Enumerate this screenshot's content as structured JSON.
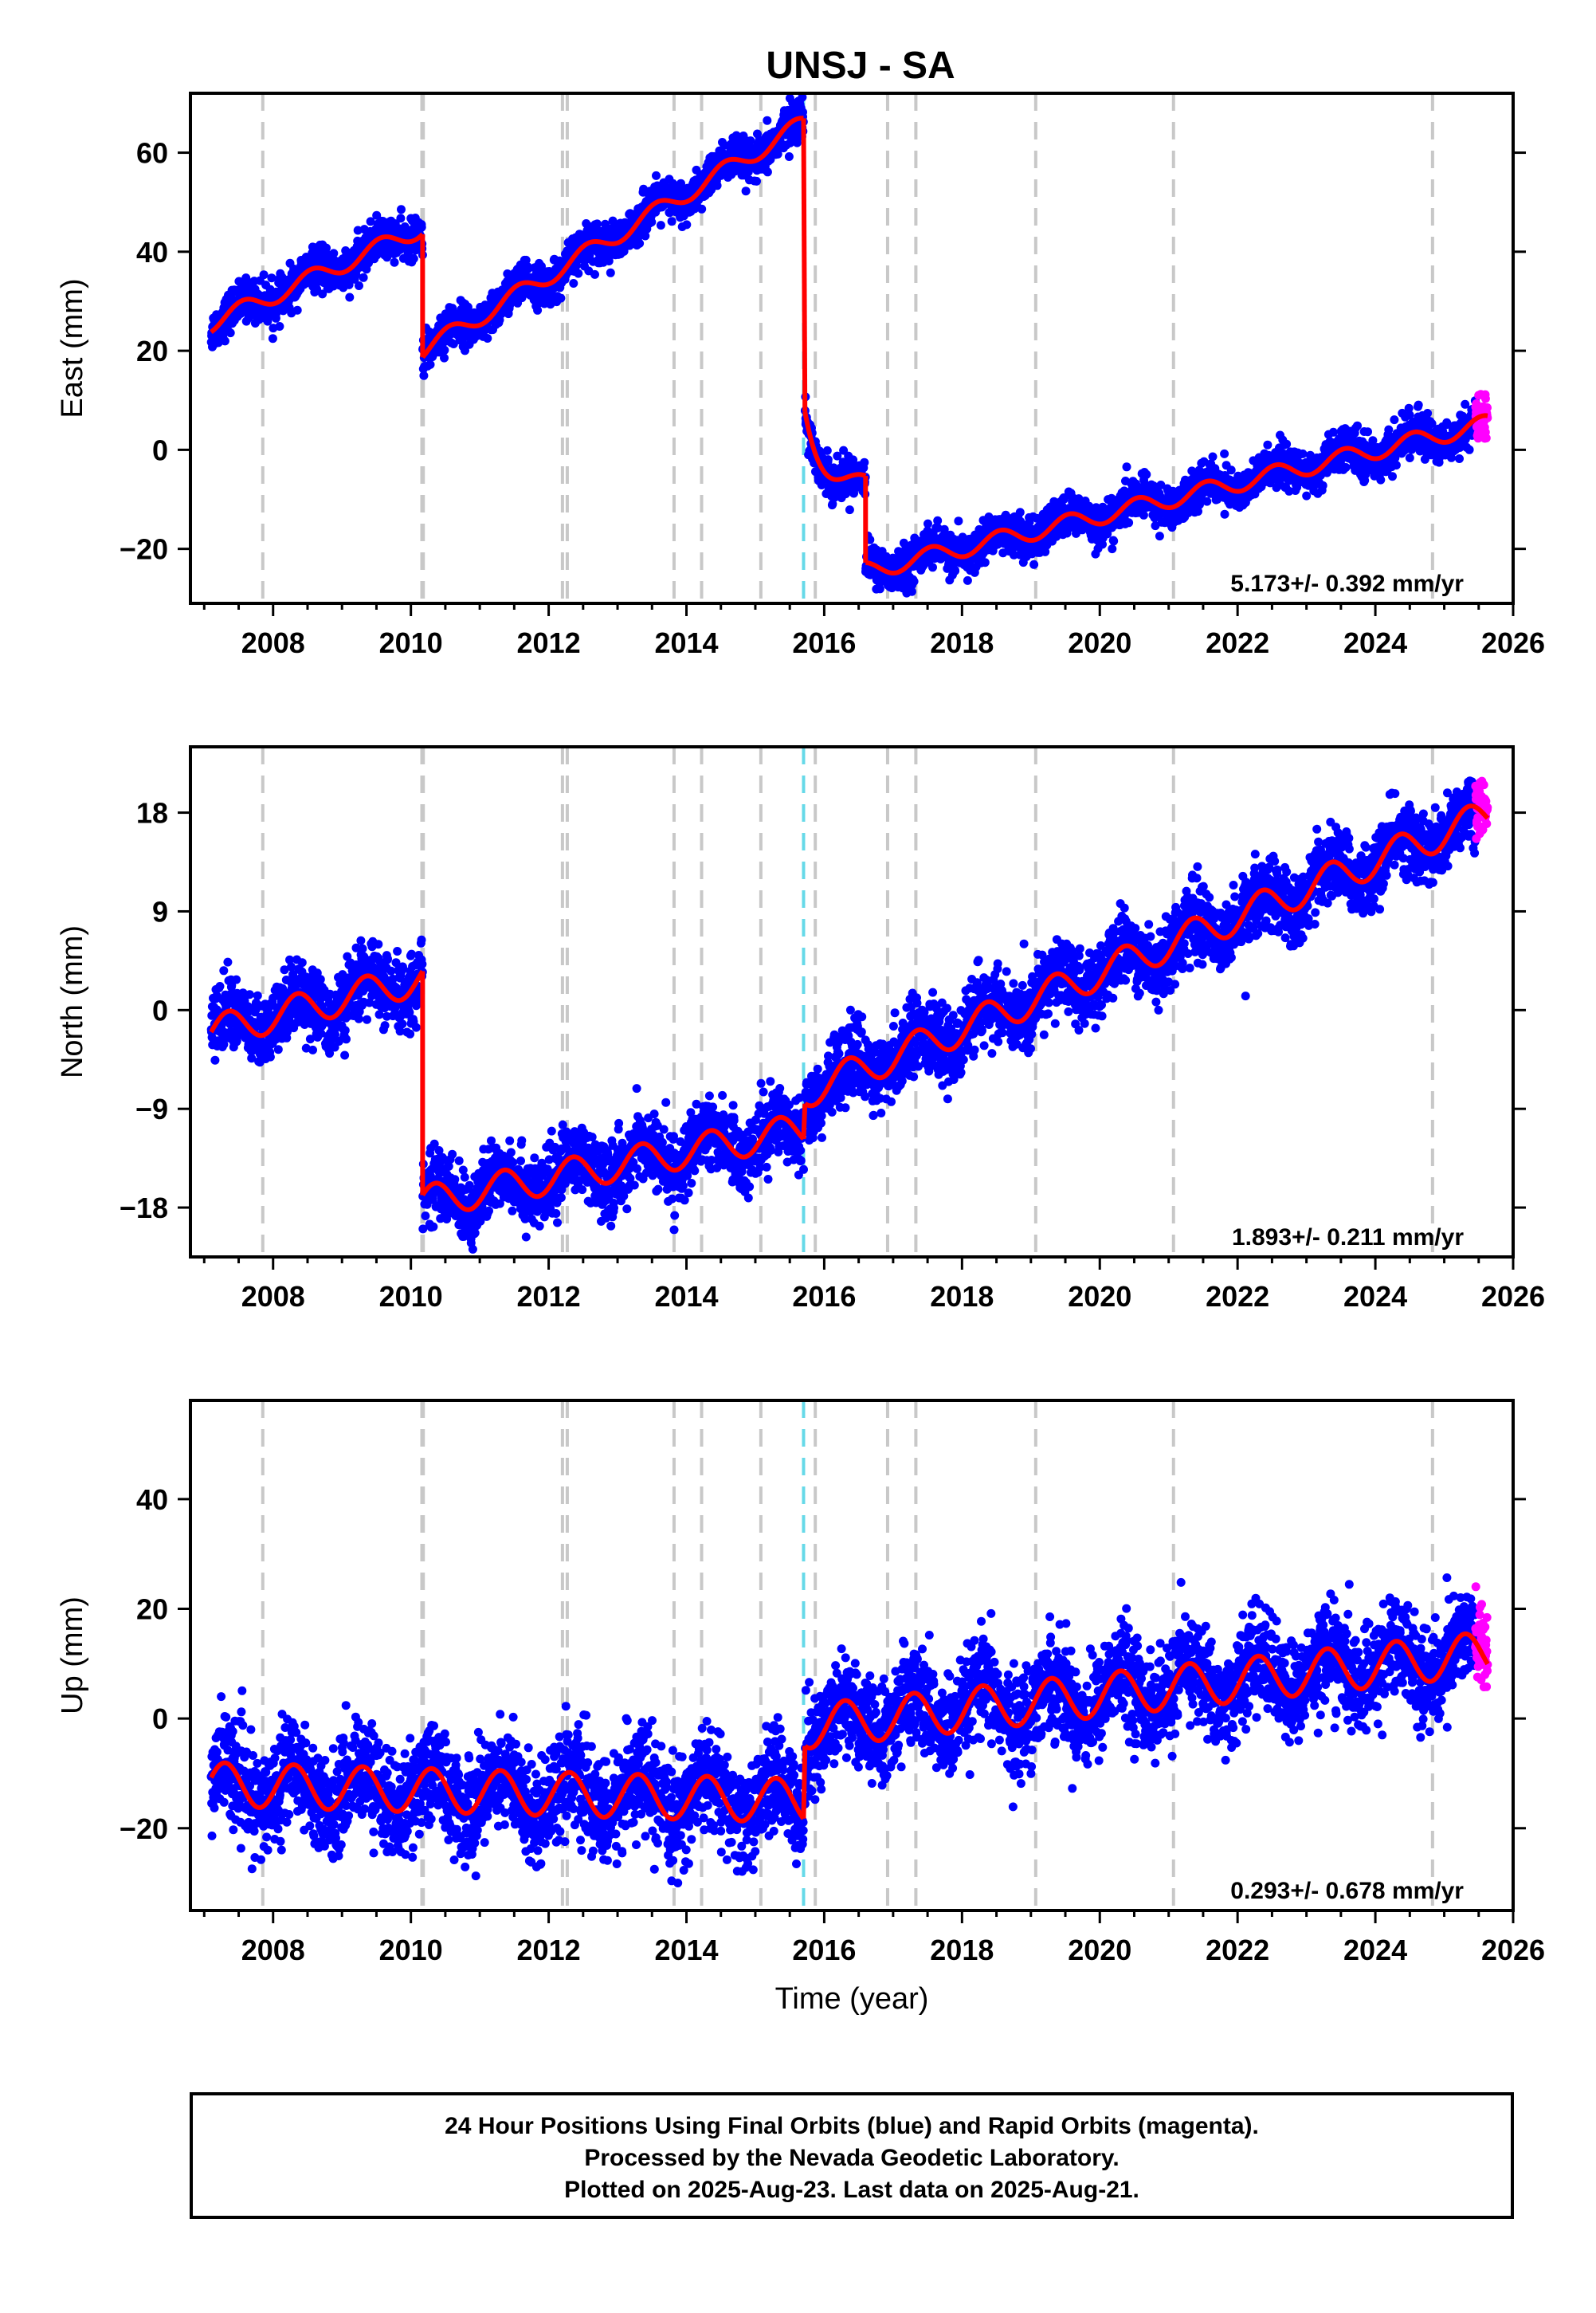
{
  "colors": {
    "final_orbits": "#0000ff",
    "rapid_orbits": "#ff00ff",
    "model": "#ff0000",
    "event_line": "#c8c8c8",
    "special_event_line": "#66d9e8",
    "frame": "#000000"
  },
  "chart_data": [
    {
      "type": "scatter",
      "title": "UNSJ - SA",
      "ylabel": "East (mm)",
      "xlabel": "",
      "xlim": [
        2006.8,
        2026.0
      ],
      "ylim": [
        -31,
        72
      ],
      "xticks": [
        2008,
        2010,
        2012,
        2014,
        2016,
        2018,
        2020,
        2022,
        2024,
        2026
      ],
      "yticks": [
        -20,
        0,
        20,
        40,
        60
      ],
      "ytick_labels": [
        "−20",
        "0",
        "20",
        "40",
        "60"
      ],
      "rate": "5.173+/- 0.392 mm/yr",
      "model_segments": [
        {
          "t0": 2007.1,
          "t1": 2010.17,
          "y0": 25.5,
          "slope": 6.3,
          "amp": 1.8,
          "phase": 0.3
        },
        {
          "t0": 2010.17,
          "t1": 2015.7,
          "y0": 20.0,
          "slope": 8.3,
          "amp": 1.8,
          "phase": 0.3
        },
        {
          "t0": 2015.72,
          "t1": 2016.6,
          "y0": -5.0,
          "decay": 12.0,
          "tau": 0.18,
          "slope": -2.0,
          "amp": 1.5,
          "phase": 0.3
        },
        {
          "t0": 2016.6,
          "t1": 2025.63,
          "y0": -24.5,
          "slope": 3.3,
          "amp": 1.8,
          "phase": 0.3
        }
      ],
      "scatter_spread": 2.0,
      "rapid_range": [
        2025.45,
        2025.63
      ]
    },
    {
      "type": "scatter",
      "title": "",
      "ylabel": "North (mm)",
      "xlabel": "",
      "xlim": [
        2006.8,
        2026.0
      ],
      "ylim": [
        -22.5,
        24
      ],
      "xticks": [
        2008,
        2010,
        2012,
        2014,
        2016,
        2018,
        2020,
        2022,
        2024,
        2026
      ],
      "yticks": [
        -18,
        -9,
        0,
        9,
        18
      ],
      "ytick_labels": [
        "−18",
        "−9",
        "0",
        "9",
        "18"
      ],
      "rate": "1.893+/- 0.211 mm/yr",
      "model_segments": [
        {
          "t0": 2007.1,
          "t1": 2010.17,
          "y0": -2.0,
          "slope": 1.6,
          "amp": 1.5,
          "phase": 0.1
        },
        {
          "t0": 2010.17,
          "t1": 2015.7,
          "y0": -17.5,
          "slope": 1.2,
          "amp": 1.5,
          "phase": 0.1
        },
        {
          "t0": 2015.72,
          "t1": 2025.63,
          "y0": -7.5,
          "slope": 2.55,
          "amp": 1.5,
          "phase": 0.1
        }
      ],
      "scatter_spread": 1.6,
      "rapid_range": [
        2025.45,
        2025.63
      ]
    },
    {
      "type": "scatter",
      "title": "",
      "ylabel": "Up (mm)",
      "xlabel": "Time (year)",
      "xlim": [
        2006.8,
        2026.0
      ],
      "ylim": [
        -35,
        58
      ],
      "xticks": [
        2008,
        2010,
        2012,
        2014,
        2016,
        2018,
        2020,
        2022,
        2024,
        2026
      ],
      "yticks": [
        -20,
        0,
        20,
        40
      ],
      "ytick_labels": [
        "−20",
        "0",
        "20",
        "40"
      ],
      "rate": "0.293+/- 0.678 mm/yr",
      "model_segments": [
        {
          "t0": 2007.1,
          "t1": 2015.7,
          "y0": -12.0,
          "slope": -0.35,
          "amp": 4.0,
          "phase": 0.05
        },
        {
          "t0": 2015.72,
          "t1": 2025.63,
          "y0": -1.5,
          "slope": 1.35,
          "amp": 4.0,
          "phase": 0.05
        }
      ],
      "scatter_spread": 4.5,
      "rapid_range": [
        2025.45,
        2025.63
      ]
    }
  ],
  "event_lines": [
    2007.85,
    2010.16,
    2010.18,
    2012.2,
    2012.27,
    2013.82,
    2014.22,
    2015.08,
    2015.87,
    2016.92,
    2017.33,
    2019.07,
    2021.07,
    2024.83
  ],
  "special_event_lines": [
    2015.7
  ],
  "footer": {
    "line1": "24 Hour Positions Using Final Orbits (blue) and Rapid Orbits (magenta).",
    "line2": "Processed by the Nevada Geodetic Laboratory.",
    "line3": "Plotted on 2025-Aug-23. Last data on 2025-Aug-21."
  }
}
